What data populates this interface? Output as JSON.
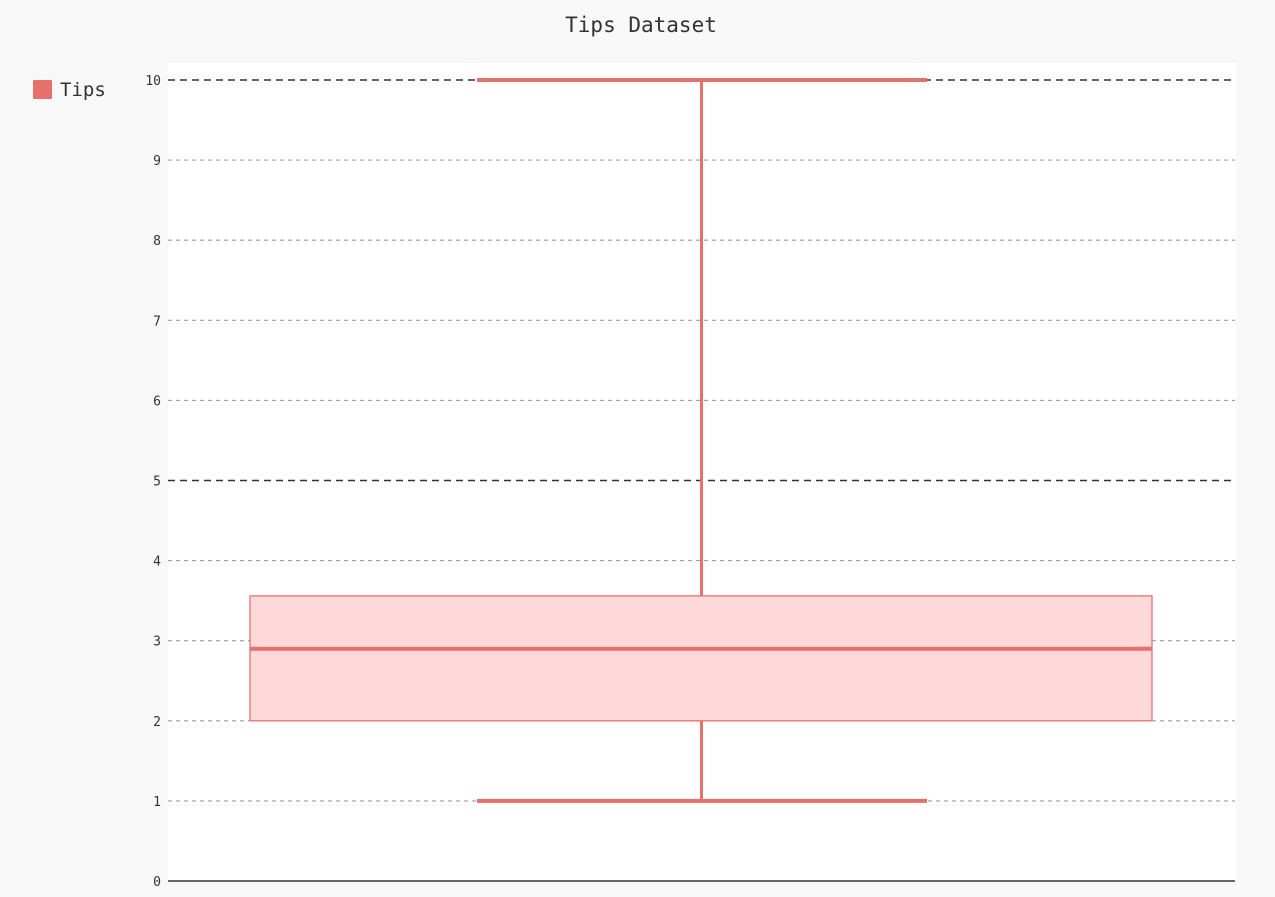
{
  "chart_data": {
    "type": "box",
    "title": "Tips Dataset",
    "legend": {
      "placement": "top-left",
      "entries": [
        {
          "label": "Tips",
          "color": "#e8706a"
        }
      ]
    },
    "series": [
      {
        "name": "Tips",
        "min": 1.0,
        "q1": 2.0,
        "median": 2.9,
        "q3": 3.56,
        "max": 10.0
      }
    ],
    "y_axis": {
      "range": [
        0,
        10
      ],
      "ticks": [
        "0",
        "1",
        "2",
        "3",
        "4",
        "5",
        "6",
        "7",
        "8",
        "9",
        "10"
      ],
      "major_ticks": [
        5,
        10
      ]
    },
    "x_axis": {
      "ticks": []
    },
    "grid": true,
    "colors": {
      "series": "#e8706a",
      "box_fill": "#fdd9d9",
      "background": "#f8f8f8",
      "plot_background": "#ffffff",
      "grid": "#9e9e9e",
      "major_grid": "#333333",
      "axis": "#333333",
      "text": "#333333"
    }
  }
}
